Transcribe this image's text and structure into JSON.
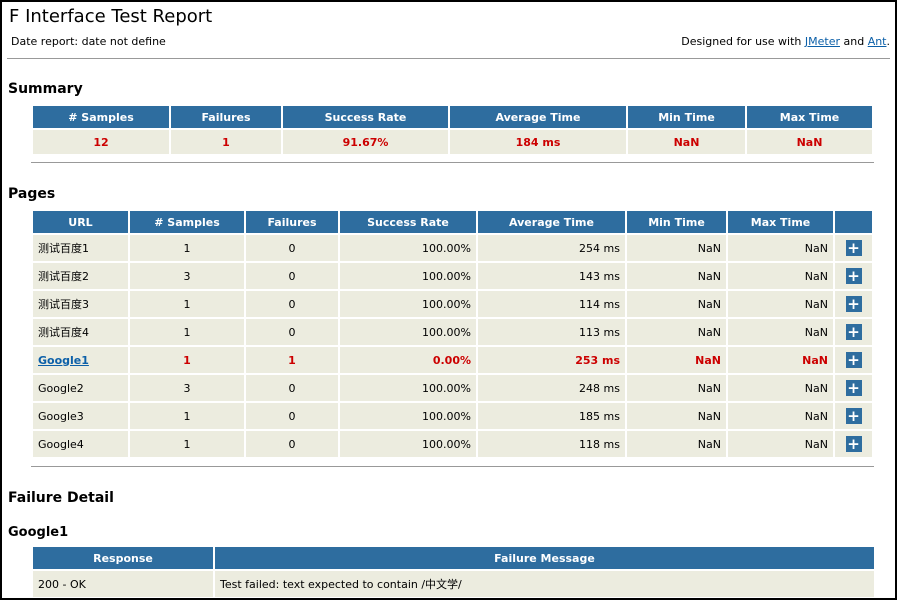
{
  "header": {
    "title": "F Interface Test Report",
    "date_report": "Date report: date not define",
    "designed_prefix": "Designed for use with ",
    "jmeter_link": "JMeter",
    "and_text": " and ",
    "ant_link": "Ant",
    "suffix": "."
  },
  "summary": {
    "heading": "Summary",
    "columns": [
      "# Samples",
      "Failures",
      "Success Rate",
      "Average Time",
      "Min Time",
      "Max Time"
    ],
    "row": [
      "12",
      "1",
      "91.67%",
      "184 ms",
      "NaN",
      "NaN"
    ]
  },
  "pages": {
    "heading": "Pages",
    "columns": [
      "URL",
      "# Samples",
      "Failures",
      "Success Rate",
      "Average Time",
      "Min Time",
      "Max Time",
      ""
    ],
    "expand_icon": "+",
    "rows": [
      {
        "url": "测试百度1",
        "samples": "1",
        "failures": "0",
        "rate": "100.00%",
        "avg": "254 ms",
        "min": "NaN",
        "max": "NaN"
      },
      {
        "url": "测试百度2",
        "samples": "3",
        "failures": "0",
        "rate": "100.00%",
        "avg": "143 ms",
        "min": "NaN",
        "max": "NaN"
      },
      {
        "url": "测试百度3",
        "samples": "1",
        "failures": "0",
        "rate": "100.00%",
        "avg": "114 ms",
        "min": "NaN",
        "max": "NaN"
      },
      {
        "url": "测试百度4",
        "samples": "1",
        "failures": "0",
        "rate": "100.00%",
        "avg": "113 ms",
        "min": "NaN",
        "max": "NaN"
      },
      {
        "url": "Google1",
        "samples": "1",
        "failures": "1",
        "rate": "0.00%",
        "avg": "253 ms",
        "min": "NaN",
        "max": "NaN"
      },
      {
        "url": "Google2",
        "samples": "3",
        "failures": "0",
        "rate": "100.00%",
        "avg": "248 ms",
        "min": "NaN",
        "max": "NaN"
      },
      {
        "url": "Google3",
        "samples": "1",
        "failures": "0",
        "rate": "100.00%",
        "avg": "185 ms",
        "min": "NaN",
        "max": "NaN"
      },
      {
        "url": "Google4",
        "samples": "1",
        "failures": "0",
        "rate": "100.00%",
        "avg": "118 ms",
        "min": "NaN",
        "max": "NaN"
      }
    ]
  },
  "failure_detail": {
    "heading": "Failure Detail",
    "page_name": "Google1",
    "columns": [
      "Response",
      "Failure Message"
    ],
    "row": [
      "200 - OK",
      "Test failed: text expected to contain /中文学/"
    ]
  }
}
